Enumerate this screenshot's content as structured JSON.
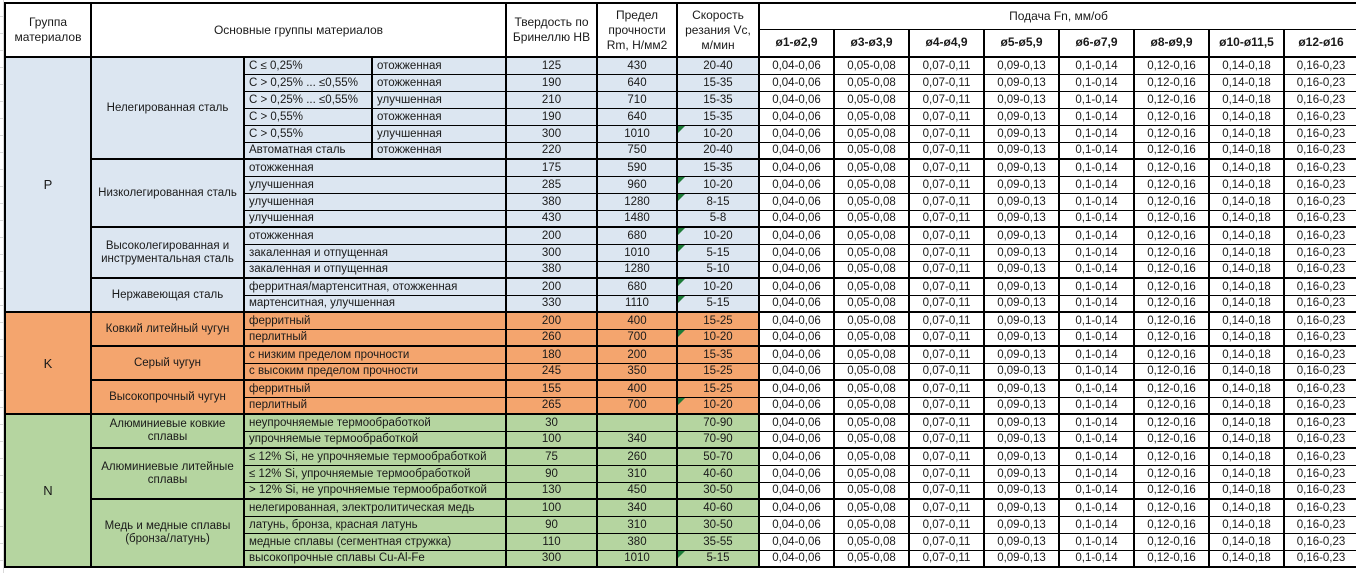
{
  "colors": {
    "note_flag": "#1e7b38",
    "grid_border": "#000000",
    "sheet_gridline": "#d9d9d9",
    "group_p": "#dce6f1",
    "group_k": "#f4a56e",
    "group_n": "#b5d5a0"
  },
  "header": {
    "col_group": "Группа материалов",
    "col_material_groups": "Основные группы материалов",
    "col_hardness": "Твердость по Бринеллю HB",
    "col_strength": "Предел прочности Rm, Н/мм2",
    "col_speed": "Скорость резания Vc, м/мин",
    "feed_title": "Подача Fn, мм/об",
    "feed_cols": [
      "ø1-ø2,9",
      "ø3-ø3,9",
      "ø4-ø4,9",
      "ø5-ø5,9",
      "ø6-ø7,9",
      "ø8-ø9,9",
      "ø10-ø11,5",
      "ø12-ø16"
    ]
  },
  "feed_values": [
    "0,04-0,06",
    "0,05-0,08",
    "0,07-0,11",
    "0,09-0,13",
    "0,1-0,14",
    "0,12-0,16",
    "0,14-0,18",
    "0,16-0,23"
  ],
  "groups": [
    {
      "letter": "P",
      "color": "#dce6f1",
      "subgroups": [
        {
          "name": "Нелегированная сталь",
          "rows": [
            {
              "c1": "C ≤ 0,25%",
              "c2": "отожженная",
              "hb": "125",
              "rm": "430",
              "vc": "20-40",
              "flag": false
            },
            {
              "c1": "C > 0,25% ... ≤0,55%",
              "c2": "отожженная",
              "hb": "190",
              "rm": "640",
              "vc": "15-35",
              "flag": false
            },
            {
              "c1": "C > 0,25% ... ≤0,55%",
              "c2": "улучшенная",
              "hb": "210",
              "rm": "710",
              "vc": "15-35",
              "flag": false
            },
            {
              "c1": "C > 0,55%",
              "c2": "отожженная",
              "hb": "190",
              "rm": "640",
              "vc": "15-35",
              "flag": false
            },
            {
              "c1": "C > 0,55%",
              "c2": "улучшенная",
              "hb": "300",
              "rm": "1010",
              "vc": "10-20",
              "flag": true
            },
            {
              "c1": "Автоматная сталь",
              "c2": "отожженная",
              "hb": "220",
              "rm": "750",
              "vc": "20-40",
              "flag": false
            }
          ]
        },
        {
          "name": "Низколегированная сталь",
          "rows": [
            {
              "c1": "отожженная",
              "hb": "175",
              "rm": "590",
              "vc": "15-35",
              "flag": false
            },
            {
              "c1": "улучшенная",
              "hb": "285",
              "rm": "960",
              "vc": "10-20",
              "flag": true
            },
            {
              "c1": "улучшенная",
              "hb": "380",
              "rm": "1280",
              "vc": "8-15",
              "flag": true
            },
            {
              "c1": "улучшенная",
              "hb": "430",
              "rm": "1480",
              "vc": "5-8",
              "flag": false
            }
          ]
        },
        {
          "name": "Высоколегированная и инструментальная сталь",
          "rows": [
            {
              "c1": "отожженная",
              "hb": "200",
              "rm": "680",
              "vc": "10-20",
              "flag": true
            },
            {
              "c1": "закаленная и отпущенная",
              "hb": "300",
              "rm": "1010",
              "vc": "5-15",
              "flag": true
            },
            {
              "c1": "закаленная и отпущенная",
              "hb": "380",
              "rm": "1280",
              "vc": "5-10",
              "flag": false
            }
          ]
        },
        {
          "name": "Нержавеющая сталь",
          "rows": [
            {
              "c1": "ферритная/мартенситная, отожженная",
              "hb": "200",
              "rm": "680",
              "vc": "10-20",
              "flag": true
            },
            {
              "c1": "мартенситная, улучшенная",
              "hb": "330",
              "rm": "1110",
              "vc": "5-15",
              "flag": true
            }
          ]
        }
      ]
    },
    {
      "letter": "K",
      "color": "#f4a56e",
      "subgroups": [
        {
          "name": "Ковкий литейный чугун",
          "rows": [
            {
              "c1": "ферритный",
              "hb": "200",
              "rm": "400",
              "vc": "15-25",
              "flag": false
            },
            {
              "c1": "перлитный",
              "hb": "260",
              "rm": "700",
              "vc": "10-20",
              "flag": true
            }
          ]
        },
        {
          "name": "Серый чугун",
          "rows": [
            {
              "c1": "с низким пределом прочности",
              "hb": "180",
              "rm": "200",
              "vc": "15-35",
              "flag": false
            },
            {
              "c1": "с высоким пределом прочности",
              "hb": "245",
              "rm": "350",
              "vc": "15-25",
              "flag": false
            }
          ]
        },
        {
          "name": "Высокопрочный чугун",
          "rows": [
            {
              "c1": "ферритный",
              "hb": "155",
              "rm": "400",
              "vc": "15-25",
              "flag": false
            },
            {
              "c1": "перлитный",
              "hb": "265",
              "rm": "700",
              "vc": "10-20",
              "flag": true
            }
          ]
        }
      ]
    },
    {
      "letter": "N",
      "color": "#b5d5a0",
      "subgroups": [
        {
          "name": "Алюминиевые ковкие сплавы",
          "rows": [
            {
              "c1": "неупрочняемые термообработкой",
              "hb": "30",
              "rm": "",
              "vc": "70-90",
              "flag": false
            },
            {
              "c1": "упрочняемые термообработкой",
              "hb": "100",
              "rm": "340",
              "vc": "70-90",
              "flag": false
            }
          ]
        },
        {
          "name": "Алюминиевые литейные сплавы",
          "rows": [
            {
              "c1": "≤ 12% Si, не упрочняемые термообработкой",
              "hb": "75",
              "rm": "260",
              "vc": "50-70",
              "flag": false
            },
            {
              "c1": "≤ 12% Si, упрочняемые термообработкой",
              "hb": "90",
              "rm": "310",
              "vc": "40-60",
              "flag": false
            },
            {
              "c1": "> 12% Si, не упрочняемые термообработкой",
              "hb": "130",
              "rm": "450",
              "vc": "30-50",
              "flag": false
            }
          ]
        },
        {
          "name": "Медь и медные сплавы (бронза/латунь)",
          "rows": [
            {
              "c1": "нелегированная, электролитическая медь",
              "hb": "100",
              "rm": "340",
              "vc": "40-60",
              "flag": false
            },
            {
              "c1": "латунь, бронза, красная латунь",
              "hb": "90",
              "rm": "310",
              "vc": "30-50",
              "flag": false
            },
            {
              "c1": "медные сплавы (сегментная стружка)",
              "hb": "110",
              "rm": "380",
              "vc": "35-55",
              "flag": false
            },
            {
              "c1": "высокопрочные сплавы Cu-Al-Fe",
              "hb": "300",
              "rm": "1010",
              "vc": "5-15",
              "flag": true
            }
          ]
        }
      ]
    }
  ]
}
